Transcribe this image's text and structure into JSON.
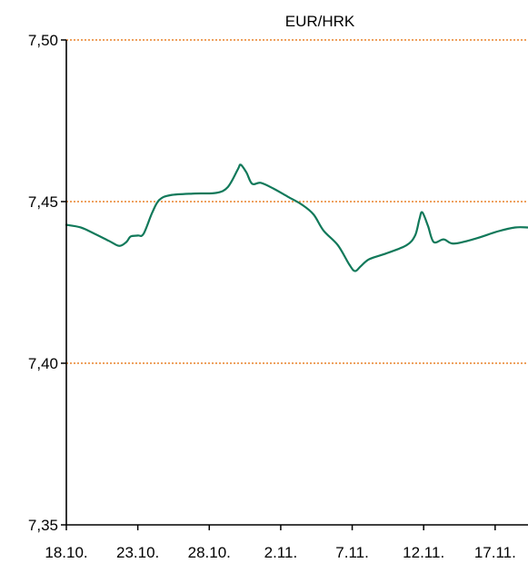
{
  "chart_data": {
    "type": "line",
    "title": "EUR/HRK",
    "xlabel": "",
    "ylabel": "",
    "ylim": [
      7.35,
      7.5
    ],
    "y_ticks": [
      7.35,
      7.4,
      7.45,
      7.5
    ],
    "y_tick_labels": [
      "7,35",
      "7,40",
      "7,45",
      "7,50"
    ],
    "x_ticks": [
      0,
      5,
      10,
      15,
      20,
      25,
      30
    ],
    "x_tick_labels": [
      "18.10.",
      "23.10.",
      "28.10.",
      "2.11.",
      "7.11.",
      "12.11.",
      "17.11."
    ],
    "xlim": [
      0,
      32.3
    ],
    "gridlines": [
      7.4,
      7.45,
      7.5
    ],
    "grid_color": "#e8822a",
    "line_color": "#11795a",
    "series": [
      {
        "values": [
          [
            0,
            7.4428
          ],
          [
            1,
            7.442
          ],
          [
            2,
            7.44
          ],
          [
            3,
            7.4378
          ],
          [
            3.7,
            7.4363
          ],
          [
            4.2,
            7.4375
          ],
          [
            4.5,
            7.4392
          ],
          [
            5.0,
            7.4395
          ],
          [
            5.4,
            7.44
          ],
          [
            6.0,
            7.4465
          ],
          [
            6.5,
            7.4505
          ],
          [
            7.3,
            7.452
          ],
          [
            9,
            7.4525
          ],
          [
            10.5,
            7.4527
          ],
          [
            11.3,
            7.4545
          ],
          [
            12.0,
            7.46
          ],
          [
            12.2,
            7.4614
          ],
          [
            12.6,
            7.459
          ],
          [
            13.0,
            7.4555
          ],
          [
            13.6,
            7.4558
          ],
          [
            14.5,
            7.454
          ],
          [
            15.5,
            7.4515
          ],
          [
            16.5,
            7.449
          ],
          [
            17.3,
            7.446
          ],
          [
            18.0,
            7.441
          ],
          [
            19.0,
            7.4365
          ],
          [
            19.8,
            7.4305
          ],
          [
            20.2,
            7.4285
          ],
          [
            20.6,
            7.43
          ],
          [
            21.2,
            7.4322
          ],
          [
            22.4,
            7.434
          ],
          [
            23.8,
            7.4365
          ],
          [
            24.4,
            7.4395
          ],
          [
            24.7,
            7.4445
          ],
          [
            24.9,
            7.4467
          ],
          [
            25.3,
            7.4425
          ],
          [
            25.7,
            7.4375
          ],
          [
            26.4,
            7.4383
          ],
          [
            27.1,
            7.437
          ],
          [
            28.6,
            7.4385
          ],
          [
            30.2,
            7.4408
          ],
          [
            31.4,
            7.442
          ],
          [
            32.3,
            7.442
          ]
        ]
      }
    ]
  }
}
